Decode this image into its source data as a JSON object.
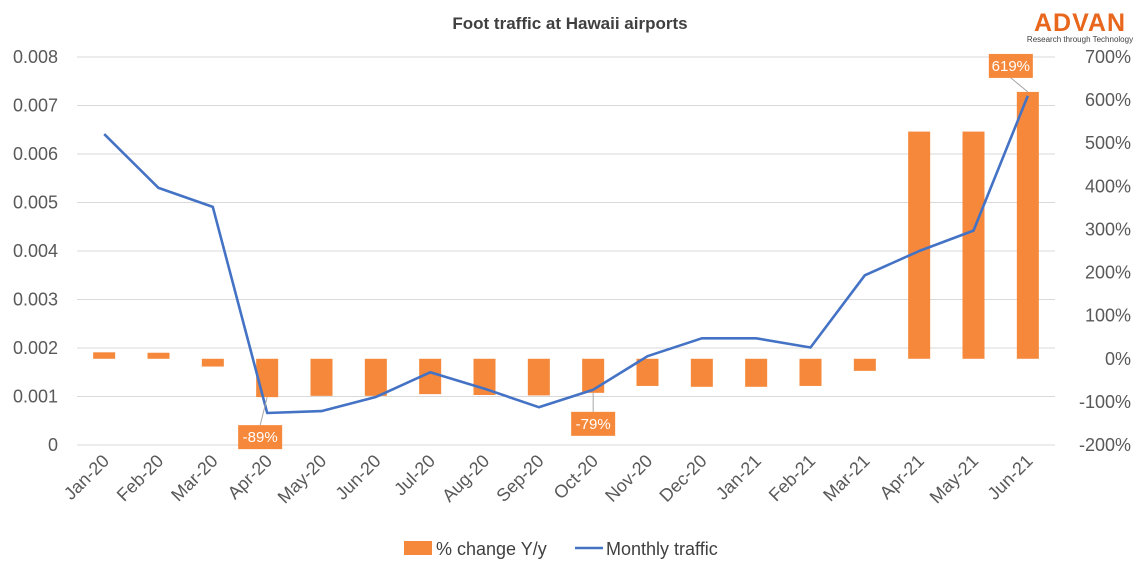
{
  "colors": {
    "bar": "#F5883A",
    "line": "#4472C4",
    "grid": "#D9D9D9",
    "logo": "#E8671D"
  },
  "logo": {
    "name": "ADVAN",
    "tagline": "Research through Technology"
  },
  "chart_data": {
    "type": "bar",
    "title": "Foot traffic at Hawaii airports",
    "categories": [
      "Jan-20",
      "Feb-20",
      "Mar-20",
      "Apr-20",
      "May-20",
      "Jun-20",
      "Jul-20",
      "Aug-20",
      "Sep-20",
      "Oct-20",
      "Nov-20",
      "Dec-20",
      "Jan-21",
      "Feb-21",
      "Mar-21",
      "Apr-21",
      "May-21",
      "Jun-21"
    ],
    "series": [
      {
        "name": "% change Y/y",
        "type": "bar",
        "axis": "right",
        "values": [
          15,
          14,
          -18,
          -89,
          -86,
          -86,
          -82,
          -84,
          -85,
          -79,
          -63,
          -65,
          -65,
          -63,
          -28,
          527,
          527,
          619
        ]
      },
      {
        "name": "Monthly traffic",
        "type": "line",
        "axis": "left",
        "values": [
          0.00641,
          0.0053,
          0.00491,
          0.00066,
          0.0007,
          0.00099,
          0.0015,
          0.00116,
          0.00078,
          0.00114,
          0.00183,
          0.0022,
          0.0022,
          0.00201,
          0.0035,
          0.004,
          0.00442,
          0.0072
        ]
      }
    ],
    "y_left": {
      "lim": [
        0,
        0.008
      ],
      "ticks": [
        "0",
        "0.001",
        "0.002",
        "0.003",
        "0.004",
        "0.005",
        "0.006",
        "0.007",
        "0.008"
      ]
    },
    "y_right": {
      "lim": [
        -200,
        700
      ],
      "ticks": [
        "-200%",
        "-100%",
        "0%",
        "100%",
        "200%",
        "300%",
        "400%",
        "500%",
        "600%",
        "700%"
      ]
    },
    "annotations": [
      {
        "label": "-89%",
        "index": 3
      },
      {
        "label": "-79%",
        "index": 9
      },
      {
        "label": "619%",
        "index": 17
      }
    ],
    "legend": {
      "position": "bottom",
      "entries": [
        "% change Y/y",
        "Monthly traffic"
      ]
    },
    "grid": true
  }
}
